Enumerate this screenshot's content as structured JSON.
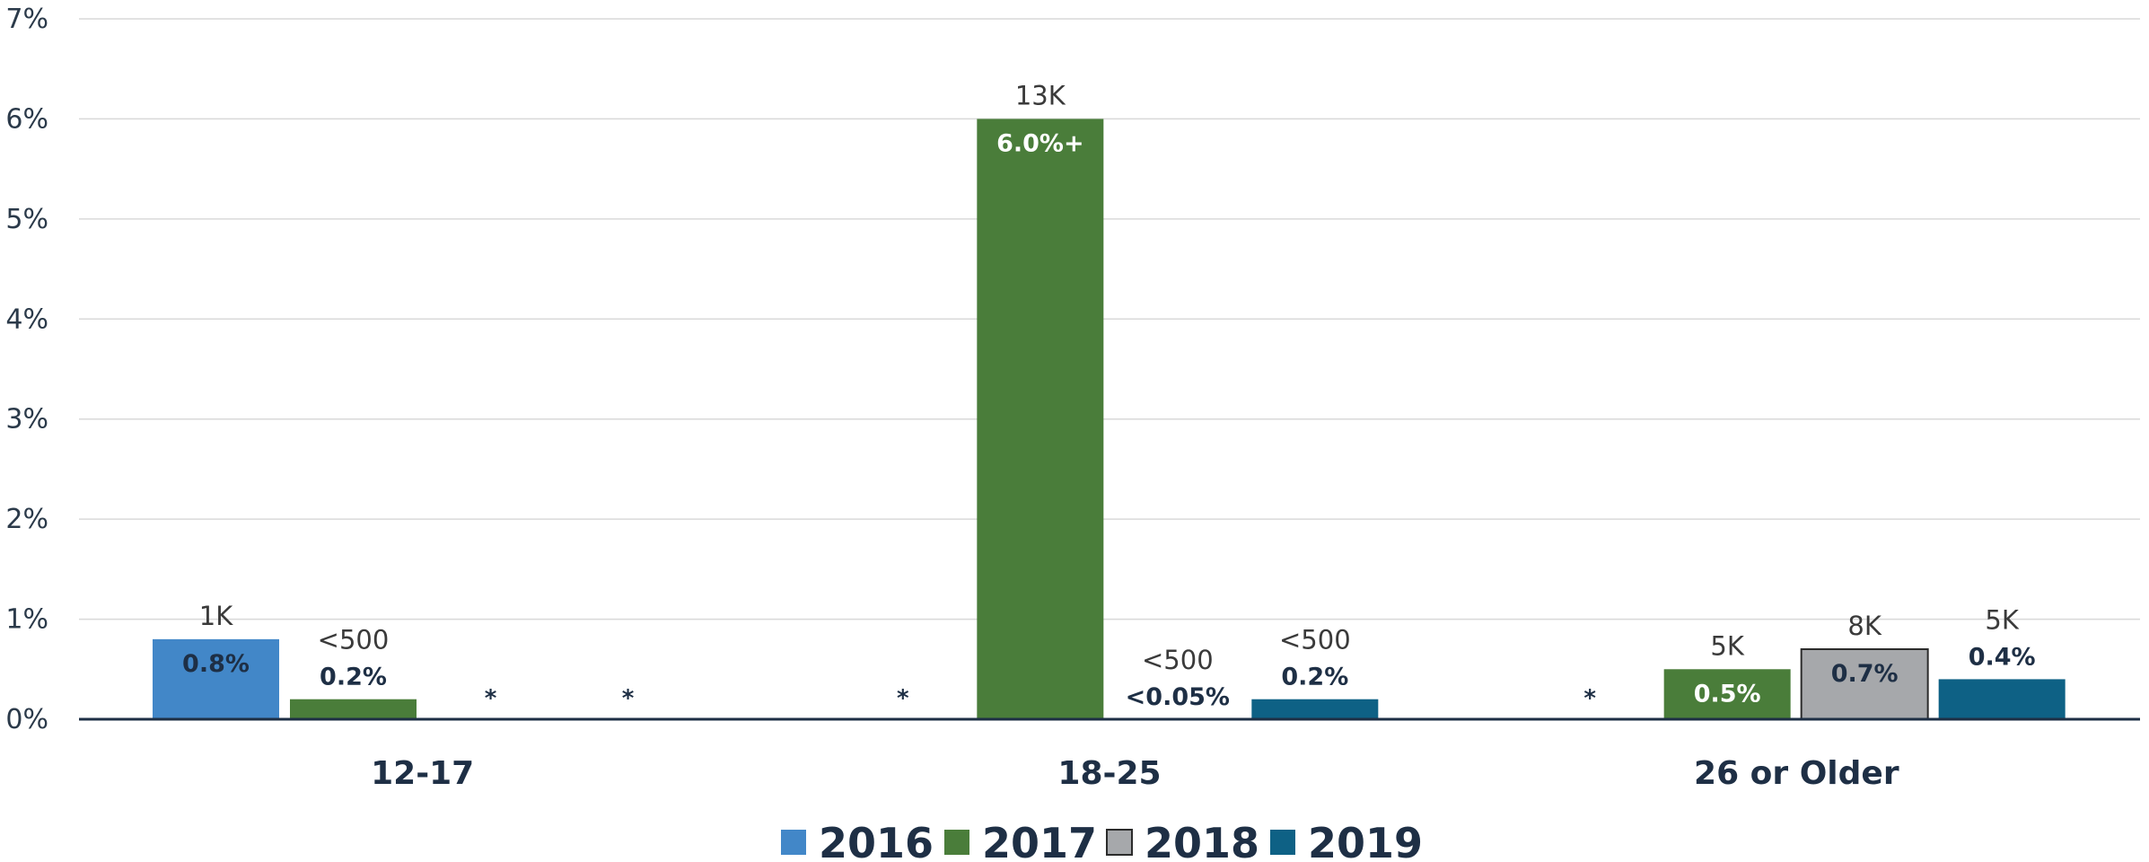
{
  "colors": {
    "2016": "#4287c8",
    "2017": "#4a7d3a",
    "2018": "#a6a8ab",
    "2019": "#0e6185",
    "grid": "#d9d9d9",
    "axis": "#1e2f45"
  },
  "chart_data": {
    "type": "bar",
    "categories": [
      "12-17",
      "18-25",
      "26 or Older"
    ],
    "ylim": [
      0,
      7
    ],
    "yticks": [
      "0%",
      "1%",
      "2%",
      "3%",
      "4%",
      "5%",
      "6%",
      "7%"
    ],
    "grid": true,
    "legend_position": "bottom",
    "series": [
      {
        "name": "2016",
        "values": [
          0.8,
          null,
          null
        ],
        "bar_labels": [
          "0.8%",
          "*",
          "*"
        ],
        "count_labels": [
          "1K",
          "",
          ""
        ]
      },
      {
        "name": "2017",
        "values": [
          0.2,
          6.0,
          0.5
        ],
        "bar_labels": [
          "0.2%",
          "6.0%+",
          "0.5%"
        ],
        "count_labels": [
          "<500",
          "13K",
          "5K"
        ]
      },
      {
        "name": "2018",
        "values": [
          null,
          0.0,
          0.7
        ],
        "bar_labels": [
          "*",
          "<0.05%",
          "0.7%"
        ],
        "count_labels": [
          "",
          "<500",
          "8K"
        ]
      },
      {
        "name": "2019",
        "values": [
          null,
          0.2,
          0.4
        ],
        "bar_labels": [
          "*",
          "0.2%",
          "0.4%"
        ],
        "count_labels": [
          "",
          "<500",
          "5K"
        ]
      }
    ]
  }
}
